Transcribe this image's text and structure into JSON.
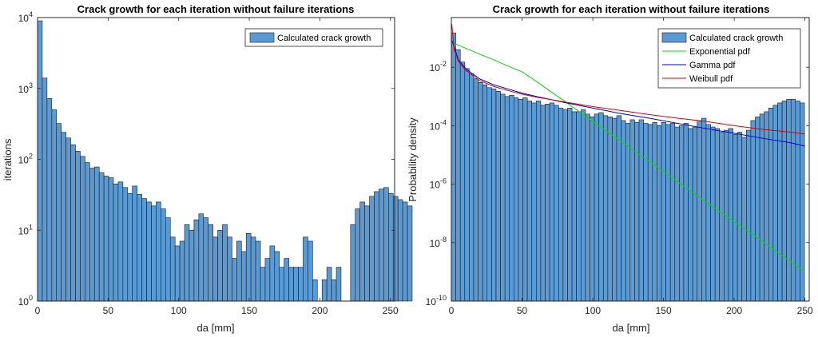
{
  "chart_data": [
    {
      "type": "bar",
      "title": "Crack growth for each iteration without failure iterations",
      "xlabel": "da [mm]",
      "ylabel": "iterations",
      "yscale": "log",
      "xlim": [
        0,
        253
      ],
      "ylim": [
        1,
        10000
      ],
      "xticks": [
        "0",
        "50",
        "100",
        "150",
        "200",
        "250"
      ],
      "xtick_values": [
        0,
        50,
        100,
        150,
        200,
        250
      ],
      "yticks": [
        {
          "base": "10",
          "exp": "0",
          "value": 1
        },
        {
          "base": "10",
          "exp": "1",
          "value": 10
        },
        {
          "base": "10",
          "exp": "2",
          "value": 100
        },
        {
          "base": "10",
          "exp": "3",
          "value": 1000
        },
        {
          "base": "10",
          "exp": "4",
          "value": 10000
        }
      ],
      "legend": {
        "position": "top-right",
        "entries": [
          "Calculated crack growth"
        ]
      },
      "bar_color": "#5b9bd5",
      "bin_width": 3.36,
      "values": [
        9000,
        1400,
        720,
        500,
        320,
        240,
        200,
        160,
        130,
        110,
        90,
        75,
        78,
        65,
        58,
        55,
        45,
        48,
        40,
        33,
        42,
        32,
        28,
        25,
        22,
        25,
        20,
        15,
        8,
        6,
        7,
        12,
        10,
        14,
        17,
        15,
        12,
        8,
        10,
        12,
        8,
        4,
        7,
        5,
        9,
        8,
        7,
        3,
        4,
        6,
        5,
        3,
        4,
        3,
        3,
        3,
        8,
        7,
        2,
        1,
        2,
        3,
        2,
        3,
        1,
        1,
        12,
        20,
        25,
        22,
        30,
        35,
        38,
        40,
        33,
        30,
        27,
        25,
        22
      ]
    },
    {
      "type": "bar",
      "title": "Crack growth for each iteration without failure iterations",
      "xlabel": "da [mm]",
      "ylabel": "Probability density",
      "yscale": "log",
      "xlim": [
        0,
        253
      ],
      "ylim": [
        1e-10,
        0.5
      ],
      "xticks": [
        "0",
        "50",
        "100",
        "150",
        "200",
        "250"
      ],
      "xtick_values": [
        0,
        50,
        100,
        150,
        200,
        250
      ],
      "yticks": [
        {
          "base": "10",
          "exp": "-10",
          "value": 1e-10
        },
        {
          "base": "10",
          "exp": "-8",
          "value": 1e-08
        },
        {
          "base": "10",
          "exp": "-6",
          "value": 1e-06
        },
        {
          "base": "10",
          "exp": "-4",
          "value": 0.0001
        },
        {
          "base": "10",
          "exp": "-2",
          "value": 0.01
        }
      ],
      "legend": {
        "position": "top-right",
        "entries": [
          "Calculated crack growth",
          "Exponential pdf",
          "Gamma pdf",
          "Weibull pdf"
        ]
      },
      "bar_color": "#5b9bd5",
      "bin_width": 3.16,
      "values": [
        0.15,
        0.04,
        0.015,
        0.009,
        0.006,
        0.004,
        0.003,
        0.0025,
        0.002,
        0.0018,
        0.0015,
        0.0012,
        0.001,
        0.0011,
        0.0009,
        0.0008,
        0.0009,
        0.0007,
        0.0006,
        0.0007,
        0.0005,
        0.00055,
        0.0006,
        0.0005,
        0.0004,
        0.00035,
        0.0004,
        0.0003,
        0.0003,
        0.00035,
        0.00025,
        0.0002,
        0.00025,
        0.00028,
        0.00022,
        0.0002,
        0.00018,
        0.00022,
        0.00015,
        0.00012,
        0.00016,
        0.00013,
        0.00016,
        0.00012,
        0.00011,
        0.00013,
        0.0001,
        0.00013,
        0.00011,
        0.00012,
        9e-05,
        0.0001,
        0.00012,
        8e-05,
        9e-05,
        0.00015,
        0.00018,
        0.00011,
        9e-05,
        8e-05,
        6e-05,
        7e-05,
        8e-05,
        5e-05,
        6e-05,
        4e-05,
        7e-05,
        0.00015,
        0.0002,
        0.00025,
        0.0003,
        0.0004,
        0.0005,
        0.0006,
        0.0007,
        0.0008,
        0.0008,
        0.0007,
        0.0006
      ],
      "series": [
        {
          "name": "Exponential pdf",
          "color": "#00dd00",
          "x": [
            0.5,
            10,
            20,
            30,
            40,
            50,
            60,
            80,
            100,
            120,
            140,
            160,
            180,
            200,
            220,
            240,
            250
          ],
          "values": [
            0.07,
            0.045,
            0.028,
            0.018,
            0.011,
            0.007,
            0.0033,
            0.00069,
            0.00014,
            2.9e-05,
            6e-06,
            1.2e-06,
            2.5e-07,
            5.2e-08,
            1.1e-08,
            2.2e-09,
            1e-09
          ]
        },
        {
          "name": "Gamma pdf",
          "color": "#0000dd",
          "x": [
            0.5,
            5,
            10,
            20,
            30,
            40,
            50,
            60,
            80,
            100,
            120,
            140,
            160,
            180,
            200,
            220,
            240,
            250
          ],
          "values": [
            0.08,
            0.018,
            0.009,
            0.004,
            0.0025,
            0.0018,
            0.0013,
            0.001,
            0.00062,
            0.0004,
            0.00026,
            0.00018,
            0.00012,
            8e-05,
            5.5e-05,
            3.7e-05,
            2.6e-05,
            2e-05
          ]
        },
        {
          "name": "Weibull pdf",
          "color": "#dd0000",
          "x": [
            0.3,
            2,
            5,
            10,
            20,
            30,
            40,
            50,
            60,
            80,
            100,
            120,
            140,
            160,
            180,
            200,
            220,
            240,
            250
          ],
          "values": [
            0.3,
            0.04,
            0.016,
            0.008,
            0.0035,
            0.0022,
            0.0016,
            0.0012,
            0.00095,
            0.00065,
            0.00045,
            0.00033,
            0.00024,
            0.00018,
            0.00014,
            0.0001,
            7.5e-05,
            6e-05,
            5.2e-05
          ]
        }
      ]
    }
  ]
}
